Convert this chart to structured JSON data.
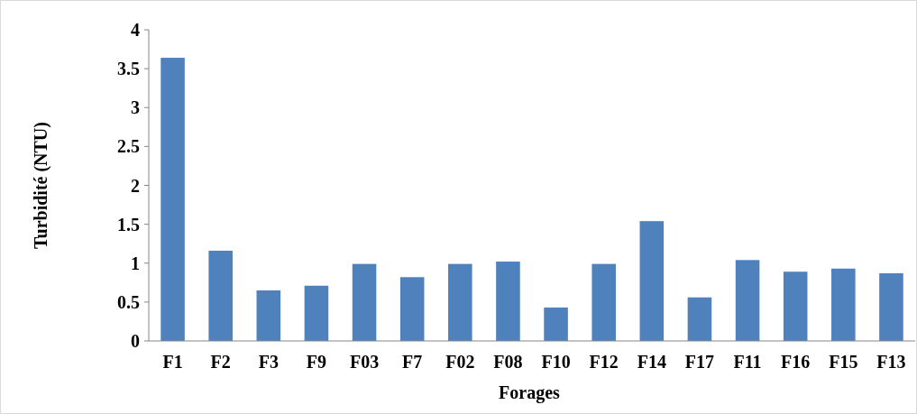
{
  "chart_data": {
    "type": "bar",
    "xlabel": "Forages",
    "ylabel": "Turbidité (NTU)",
    "categories": [
      "F1",
      "F2",
      "F3",
      "F9",
      "F03",
      "F7",
      "F02",
      "F08",
      "F10",
      "F12",
      "F14",
      "F17",
      "F11",
      "F16",
      "F15",
      "F13"
    ],
    "values": [
      3.64,
      1.16,
      0.65,
      0.71,
      0.99,
      0.82,
      0.99,
      1.02,
      0.43,
      0.99,
      1.54,
      0.56,
      1.04,
      0.89,
      0.93,
      0.87
    ],
    "color": "#4f81bd",
    "ylim": [
      0,
      4
    ],
    "yticks": [
      0,
      0.5,
      1,
      1.5,
      2,
      2.5,
      3,
      3.5,
      4
    ],
    "grid": false
  }
}
